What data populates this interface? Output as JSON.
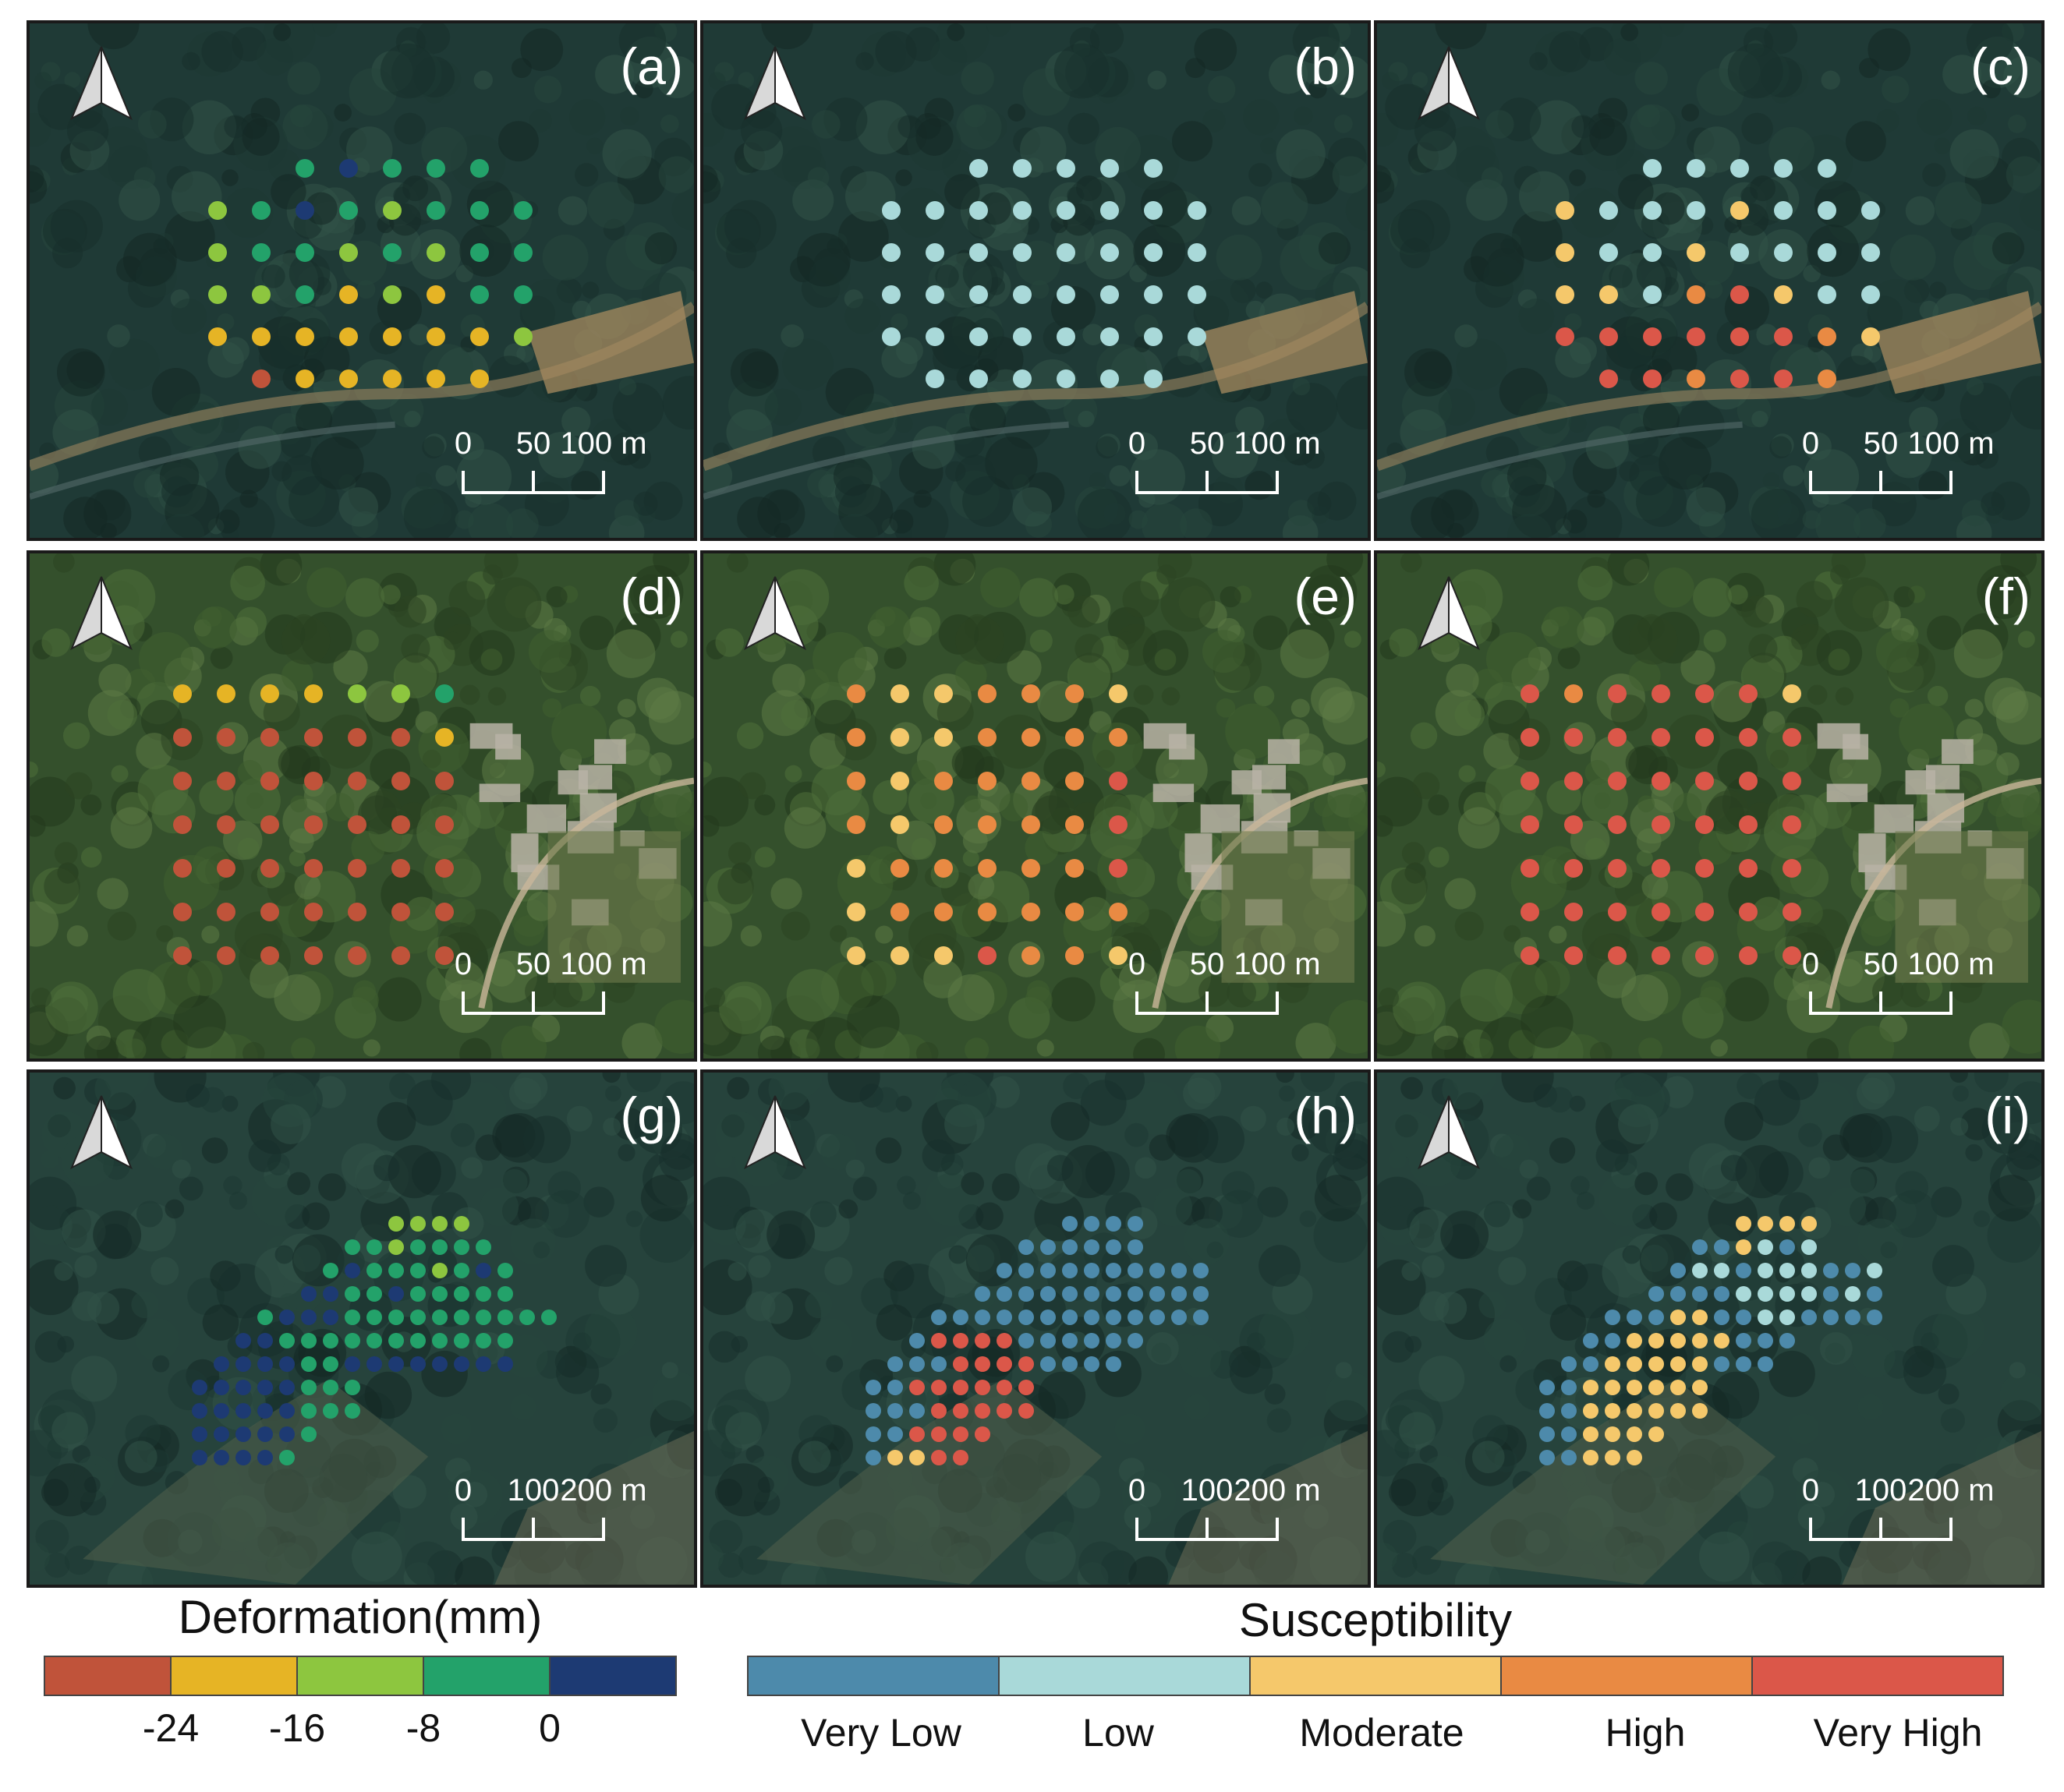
{
  "panels": [
    {
      "label": "(a)",
      "scale": [
        "0",
        "50",
        "100 m"
      ],
      "scene": "forest",
      "scheme": "def"
    },
    {
      "label": "(b)",
      "scale": [
        "0",
        "50",
        "100 m"
      ],
      "scene": "forest",
      "scheme": "sus"
    },
    {
      "label": "(c)",
      "scale": [
        "0",
        "50",
        "100 m"
      ],
      "scene": "forest",
      "scheme": "sus"
    },
    {
      "label": "(d)",
      "scale": [
        "0",
        "50",
        "100 m"
      ],
      "scene": "village",
      "scheme": "def"
    },
    {
      "label": "(e)",
      "scale": [
        "0",
        "50",
        "100 m"
      ],
      "scene": "village",
      "scheme": "sus"
    },
    {
      "label": "(f)",
      "scale": [
        "0",
        "50",
        "100 m"
      ],
      "scene": "village",
      "scheme": "sus"
    },
    {
      "label": "(g)",
      "scale": [
        "0",
        "100",
        "200 m"
      ],
      "scene": "hill",
      "scheme": "def"
    },
    {
      "label": "(h)",
      "scale": [
        "0",
        "100",
        "200 m"
      ],
      "scene": "hill",
      "scheme": "sus"
    },
    {
      "label": "(i)",
      "scale": [
        "0",
        "100",
        "200 m"
      ],
      "scene": "hill",
      "scheme": "sus"
    }
  ],
  "deformation_legend": {
    "title": "Deformation(mm)",
    "colors": [
      "#c0533a",
      "#e6b425",
      "#8dc63f",
      "#23a26a",
      "#1d3a73"
    ],
    "ticks": [
      "-24",
      "-16",
      "-8",
      "0"
    ]
  },
  "susceptibility_legend": {
    "title": "Susceptibility",
    "colors": [
      "#4d8aab",
      "#a9d9d9",
      "#f5c86b",
      "#e98a43",
      "#db5749"
    ],
    "classes": [
      "Very Low",
      "Low",
      "Moderate",
      "High",
      "Very High"
    ]
  },
  "colors": {
    "forest_bg": "#1f3a36",
    "village_bg": "#34502c",
    "hill_bg": "#26433c",
    "north_arrow": "#ffffff"
  },
  "panel_data": {
    "a": [
      [
        null,
        null,
        3,
        4,
        3,
        3,
        3,
        null
      ],
      [
        2,
        3,
        4,
        3,
        2,
        3,
        3,
        3
      ],
      [
        2,
        3,
        3,
        2,
        3,
        2,
        3,
        3
      ],
      [
        2,
        2,
        3,
        1,
        2,
        1,
        3,
        3
      ],
      [
        1,
        1,
        1,
        1,
        1,
        1,
        1,
        2
      ],
      [
        null,
        0,
        1,
        1,
        1,
        1,
        1,
        null
      ]
    ],
    "b": [
      [
        null,
        null,
        1,
        1,
        1,
        1,
        1,
        null
      ],
      [
        1,
        1,
        1,
        1,
        1,
        1,
        1,
        1
      ],
      [
        1,
        1,
        1,
        1,
        1,
        1,
        1,
        1
      ],
      [
        1,
        1,
        1,
        1,
        1,
        1,
        1,
        1
      ],
      [
        1,
        1,
        1,
        1,
        1,
        1,
        1,
        1
      ],
      [
        null,
        1,
        1,
        1,
        1,
        1,
        1,
        null
      ]
    ],
    "c": [
      [
        null,
        null,
        1,
        1,
        1,
        1,
        1,
        null
      ],
      [
        2,
        1,
        1,
        1,
        2,
        1,
        1,
        1
      ],
      [
        2,
        1,
        1,
        2,
        1,
        1,
        1,
        1
      ],
      [
        2,
        2,
        1,
        3,
        4,
        2,
        1,
        1
      ],
      [
        4,
        4,
        4,
        4,
        4,
        4,
        3,
        2
      ],
      [
        null,
        4,
        4,
        3,
        4,
        4,
        3,
        null
      ]
    ],
    "d": [
      [
        1,
        1,
        1,
        1,
        2,
        2,
        3
      ],
      [
        0,
        0,
        0,
        0,
        0,
        0,
        1
      ],
      [
        0,
        0,
        0,
        0,
        0,
        0,
        0
      ],
      [
        0,
        0,
        0,
        0,
        0,
        0,
        0
      ],
      [
        0,
        0,
        0,
        0,
        0,
        0,
        0
      ],
      [
        0,
        0,
        0,
        0,
        0,
        0,
        0
      ],
      [
        0,
        0,
        0,
        0,
        0,
        0,
        0
      ]
    ],
    "e": [
      [
        3,
        2,
        2,
        3,
        3,
        3,
        2
      ],
      [
        3,
        2,
        2,
        3,
        3,
        3,
        3
      ],
      [
        3,
        2,
        3,
        3,
        3,
        3,
        4
      ],
      [
        3,
        2,
        3,
        3,
        3,
        3,
        4
      ],
      [
        2,
        3,
        3,
        3,
        3,
        3,
        4
      ],
      [
        2,
        3,
        3,
        3,
        3,
        3,
        3
      ],
      [
        2,
        2,
        2,
        4,
        3,
        3,
        2
      ]
    ],
    "f": [
      [
        4,
        3,
        4,
        4,
        4,
        4,
        2
      ],
      [
        4,
        4,
        4,
        4,
        4,
        4,
        4
      ],
      [
        4,
        4,
        4,
        4,
        4,
        4,
        4
      ],
      [
        4,
        4,
        4,
        4,
        4,
        4,
        4
      ],
      [
        4,
        4,
        4,
        4,
        4,
        4,
        4
      ],
      [
        4,
        4,
        4,
        4,
        4,
        4,
        4
      ],
      [
        4,
        4,
        4,
        4,
        4,
        4,
        4
      ]
    ],
    "g": [
      "..........2222...",
      "........3323333..",
      ".......343332343.",
      "......4433433333.",
      "....34443333333333",
      "...4433333333333.",
      "..44443344444444.",
      ".44444333........",
      ".44444333........",
      ".444443..........",
      ".44443..........."
    ],
    "h": [
      "..........0000...",
      "........000000...",
      ".......0000000000",
      "......00000000000",
      "....0000000000000",
      "...04444000000...",
      "..00044440000....",
      ".00444444........",
      ".00044444........",
      ".004444..........",
      ".02244..........."
    ],
    "i": [
      "..........2222...",
      "........002101...",
      ".......0110111001",
      "......00001111010",
      "....0002200110000",
      "...0022222000....",
      "..0022222000.....",
      ".00222222........",
      ".00222222........",
      ".002222..........",
      ".00222..........."
    ]
  }
}
